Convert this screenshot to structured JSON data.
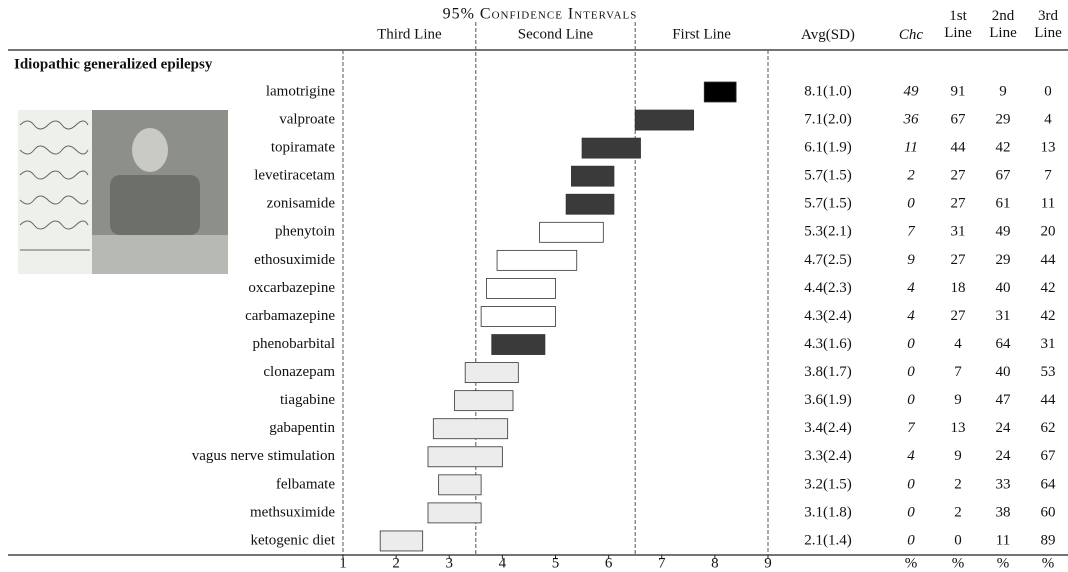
{
  "chart_data": {
    "type": "bar",
    "title": "95% Confidence Intervals",
    "region_labels": [
      "Third Line",
      "Second Line",
      "First Line"
    ],
    "region_bounds": [
      3.5,
      6.5
    ],
    "section": "Idiopathic generalized epilepsy",
    "categories": [
      "lamotrigine",
      "valproate",
      "topiramate",
      "levetiracetam",
      "zonisamide",
      "phenytoin",
      "ethosuximide",
      "oxcarbazepine",
      "carbamazepine",
      "phenobarbital",
      "clonazepam",
      "tiagabine",
      "gabapentin",
      "vagus nerve stimulation",
      "felbamate",
      "methsuximide",
      "ketogenic diet"
    ],
    "low": [
      7.8,
      6.5,
      5.5,
      5.3,
      5.2,
      4.7,
      3.9,
      3.7,
      3.6,
      3.8,
      3.3,
      3.1,
      2.7,
      2.6,
      2.8,
      2.6,
      1.7
    ],
    "high": [
      8.4,
      7.6,
      6.6,
      6.1,
      6.1,
      5.9,
      5.4,
      5.0,
      5.0,
      4.8,
      4.3,
      4.2,
      4.1,
      4.0,
      3.6,
      3.6,
      2.5
    ],
    "colors": [
      "#000000",
      "#3a3a3a",
      "#3a3a3a",
      "#3a3a3a",
      "#3a3a3a",
      "#ffffff",
      "#ffffff",
      "#ffffff",
      "#ffffff",
      "#3a3a3a",
      "#ececec",
      "#ececec",
      "#ececec",
      "#ececec",
      "#ececec",
      "#ececec",
      "#ececec"
    ],
    "xlim": [
      1,
      9
    ],
    "xticks": [
      1,
      2,
      3,
      4,
      5,
      6,
      7,
      8,
      9
    ],
    "table": {
      "columns": [
        "Avg(SD)",
        "Chc",
        "1st Line",
        "2nd Line",
        "3rd Line"
      ],
      "avg_sd": [
        "8.1(1.0)",
        "7.1(2.0)",
        "6.1(1.9)",
        "5.7(1.5)",
        "5.7(1.5)",
        "5.3(2.1)",
        "4.7(2.5)",
        "4.4(2.3)",
        "4.3(2.4)",
        "4.3(1.6)",
        "3.8(1.7)",
        "3.6(1.9)",
        "3.4(2.4)",
        "3.3(2.4)",
        "3.2(1.5)",
        "3.1(1.8)",
        "2.1(1.4)"
      ],
      "chc": [
        49,
        36,
        11,
        2,
        0,
        7,
        9,
        4,
        4,
        0,
        0,
        0,
        7,
        4,
        0,
        0,
        0
      ],
      "first": [
        91,
        67,
        44,
        27,
        27,
        31,
        27,
        18,
        27,
        4,
        7,
        9,
        13,
        9,
        2,
        2,
        0
      ],
      "second": [
        9,
        29,
        42,
        67,
        61,
        49,
        29,
        40,
        31,
        64,
        40,
        47,
        24,
        24,
        33,
        38,
        11
      ],
      "third": [
        0,
        4,
        13,
        7,
        11,
        20,
        44,
        42,
        42,
        31,
        53,
        44,
        62,
        67,
        64,
        60,
        89
      ],
      "units": [
        "%",
        "%",
        "%",
        "%"
      ]
    }
  }
}
